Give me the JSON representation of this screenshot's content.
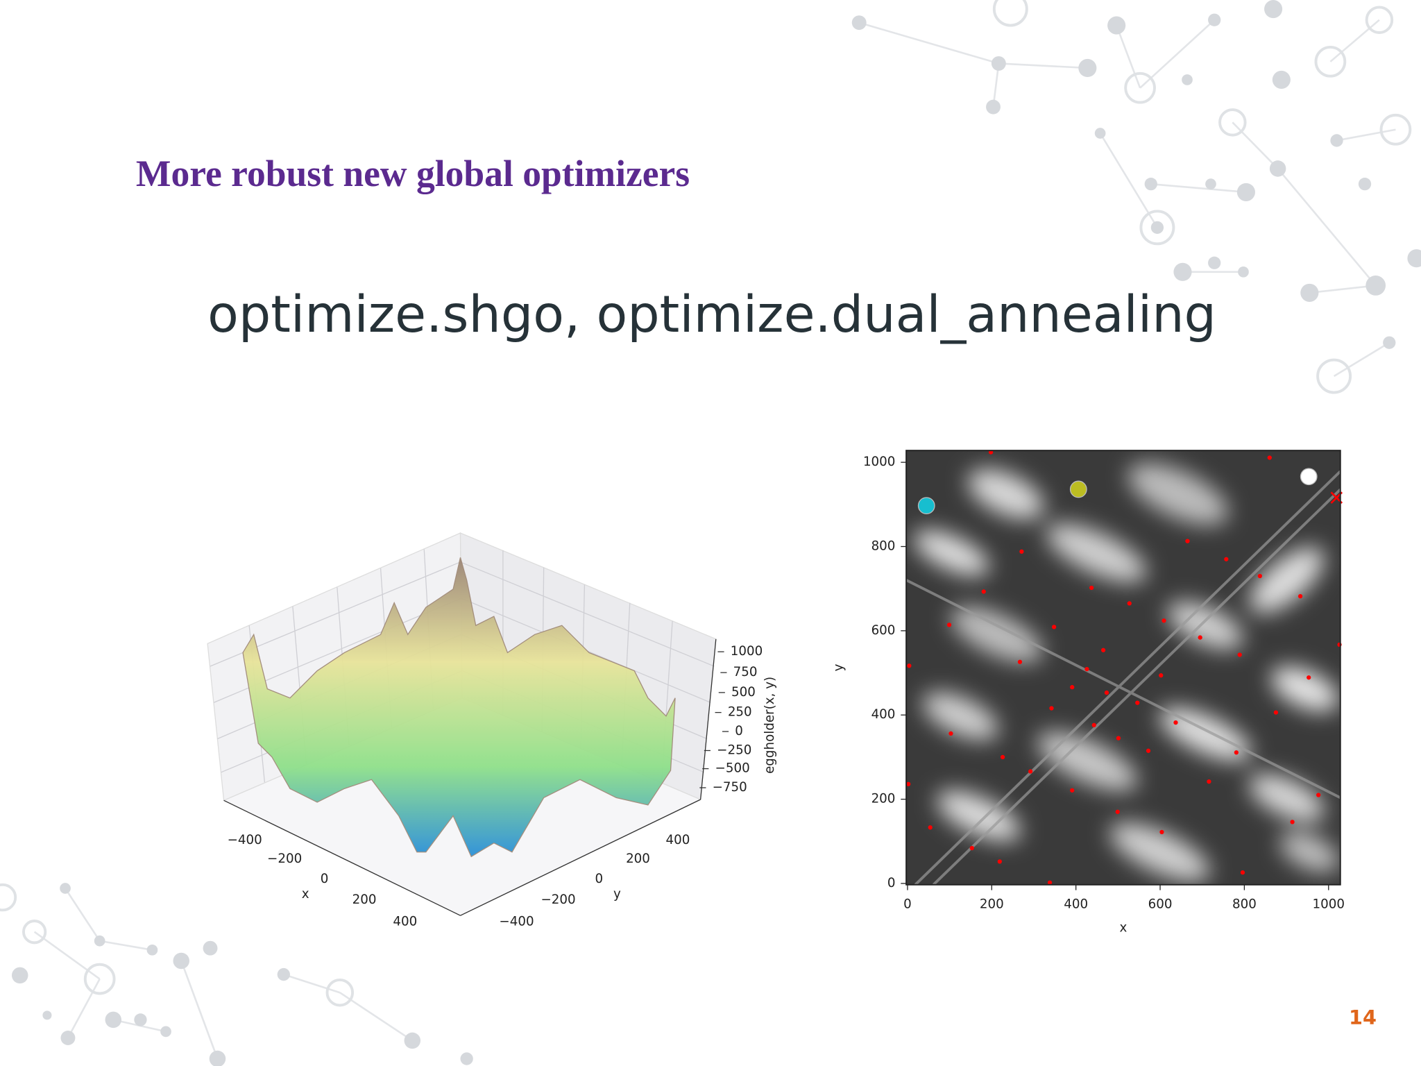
{
  "header": {
    "title": "More robust new global optimizers"
  },
  "subtitle": "optimize.shgo, optimize.dual_annealing",
  "page_number": "14",
  "surface_plot": {
    "xlabel": "x",
    "ylabel": "y",
    "zlabel": "eggholder(x, y)",
    "xticks": [
      {
        "value": -400,
        "label": "−400"
      },
      {
        "value": -200,
        "label": "−200"
      },
      0,
      200,
      400
    ],
    "yticks": [
      400,
      200,
      0,
      {
        "value": -200,
        "label": "−200"
      },
      {
        "value": -400,
        "label": "−400"
      }
    ],
    "zticks": [
      1000,
      750,
      500,
      250,
      0,
      {
        "value": -250,
        "label": "−250"
      },
      {
        "value": -500,
        "label": "−500"
      },
      {
        "value": -750,
        "label": "−750"
      }
    ]
  },
  "chart_data": {
    "type": "scatter",
    "xlabel": "x",
    "ylabel": "y",
    "xlim": [
      -3,
      1028
    ],
    "ylim": [
      -3,
      1028
    ],
    "xticks": [
      0,
      200,
      400,
      600,
      800,
      1000
    ],
    "yticks": [
      0,
      200,
      400,
      600,
      800,
      1000
    ],
    "series": [
      {
        "color": "#ff0000",
        "marker": "dot",
        "x": [
          198,
          860,
          271,
          665,
          757,
          837,
          181,
          437,
          527,
          933,
          99,
          348,
          609,
          465,
          695,
          4,
          267,
          426,
          602,
          789,
          1026,
          391,
          473,
          953,
          342,
          546,
          875,
          443,
          637,
          103,
          501,
          572,
          781,
          226,
          292,
          716,
          391,
          976,
          2,
          499,
          914,
          54,
          604,
          153,
          219,
          796,
          338
        ],
        "y": [
          1024,
          1011,
          788,
          813,
          770,
          730,
          693,
          702,
          665,
          682,
          614,
          609,
          624,
          554,
          584,
          517,
          526,
          509,
          494,
          543,
          567,
          466,
          453,
          489,
          416,
          429,
          406,
          376,
          382,
          356,
          345,
          315,
          311,
          300,
          266,
          242,
          221,
          210,
          236,
          170,
          146,
          133,
          122,
          84,
          52,
          26,
          2
        ]
      },
      {
        "color": "#17becf",
        "marker": "circle",
        "x": [
          45
        ],
        "y": [
          897
        ]
      },
      {
        "color": "#bcbd22",
        "marker": "circle",
        "x": [
          406
        ],
        "y": [
          936
        ]
      },
      {
        "color": "#ffffff",
        "marker": "circle",
        "x": [
          953
        ],
        "y": [
          966
        ]
      },
      {
        "color": "#ff0000",
        "marker": "x",
        "x": [
          1019
        ],
        "y": [
          916
        ]
      }
    ]
  }
}
